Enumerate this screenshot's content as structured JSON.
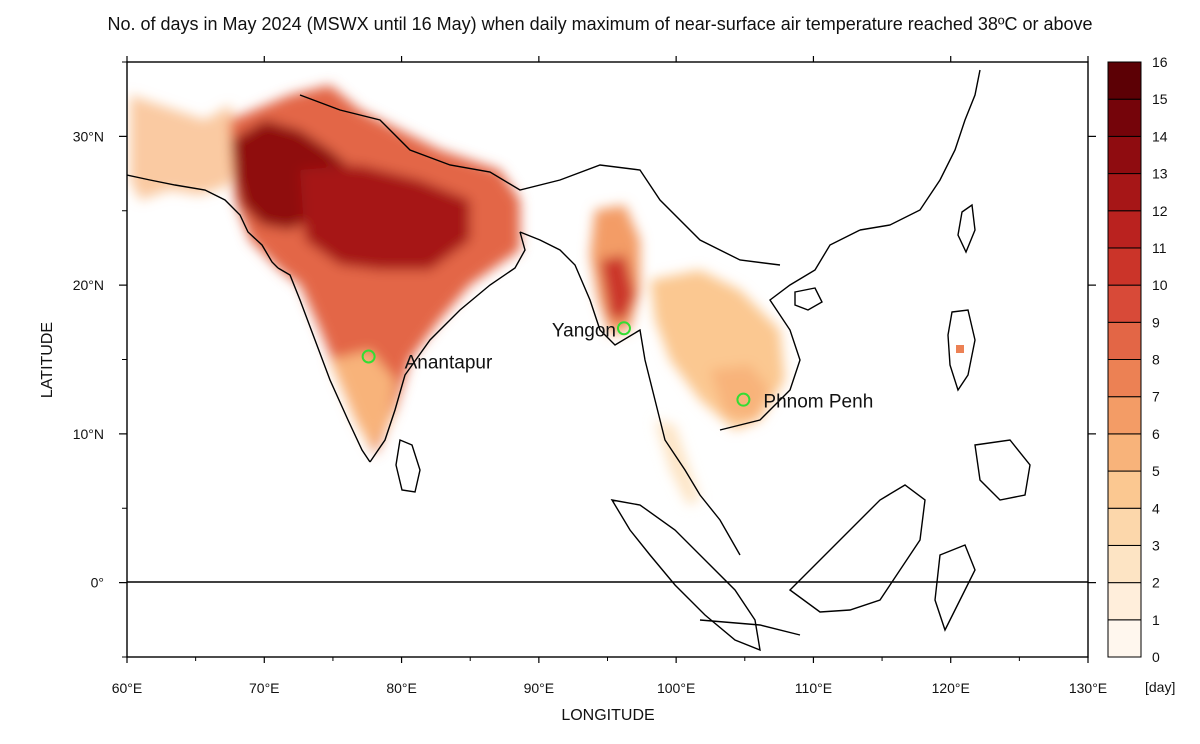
{
  "title": "No. of days in May 2024 (MSWX until 16 May) when daily maximum of near-surface air temperature reached 38ºC or above",
  "map": {
    "xlabel": "LONGITUDE",
    "ylabel": "LATITUDE",
    "lon_range": [
      60,
      130
    ],
    "lat_range": [
      -5,
      35
    ],
    "lon_ticks": [
      {
        "value": 60,
        "label": "60°E"
      },
      {
        "value": 70,
        "label": "70°E"
      },
      {
        "value": 80,
        "label": "80°E"
      },
      {
        "value": 90,
        "label": "90°E"
      },
      {
        "value": 100,
        "label": "100°E"
      },
      {
        "value": 110,
        "label": "110°E"
      },
      {
        "value": 120,
        "label": "120°E"
      },
      {
        "value": 130,
        "label": "130°E"
      }
    ],
    "lat_ticks": [
      {
        "value": 30,
        "label": "30°N"
      },
      {
        "value": 20,
        "label": "20°N"
      },
      {
        "value": 10,
        "label": "10°N"
      },
      {
        "value": 0,
        "label": "0°"
      }
    ],
    "equator_line": true,
    "cities": [
      {
        "name": "Anantapur",
        "lon": 77.6,
        "lat": 15.2,
        "marker_color": "#33dd33"
      },
      {
        "name": "Yangon",
        "lon": 96.2,
        "lat": 17.1,
        "marker_color": "#33dd33"
      },
      {
        "name": "Phnom Penh",
        "lon": 104.9,
        "lat": 12.3,
        "marker_color": "#33dd33"
      }
    ]
  },
  "colorbar": {
    "unit": "[day]",
    "levels": [
      0,
      1,
      2,
      3,
      4,
      5,
      6,
      7,
      8,
      9,
      10,
      11,
      12,
      13,
      14,
      15,
      16
    ],
    "colors": [
      "#fff7ee",
      "#ffeedb",
      "#fde4c4",
      "#fcd7ab",
      "#fbc891",
      "#f8b37a",
      "#f39c66",
      "#ec8154",
      "#e36646",
      "#d84a38",
      "#cb3429",
      "#ba221f",
      "#a61617",
      "#8f0c10",
      "#75040a",
      "#5c0005"
    ]
  }
}
